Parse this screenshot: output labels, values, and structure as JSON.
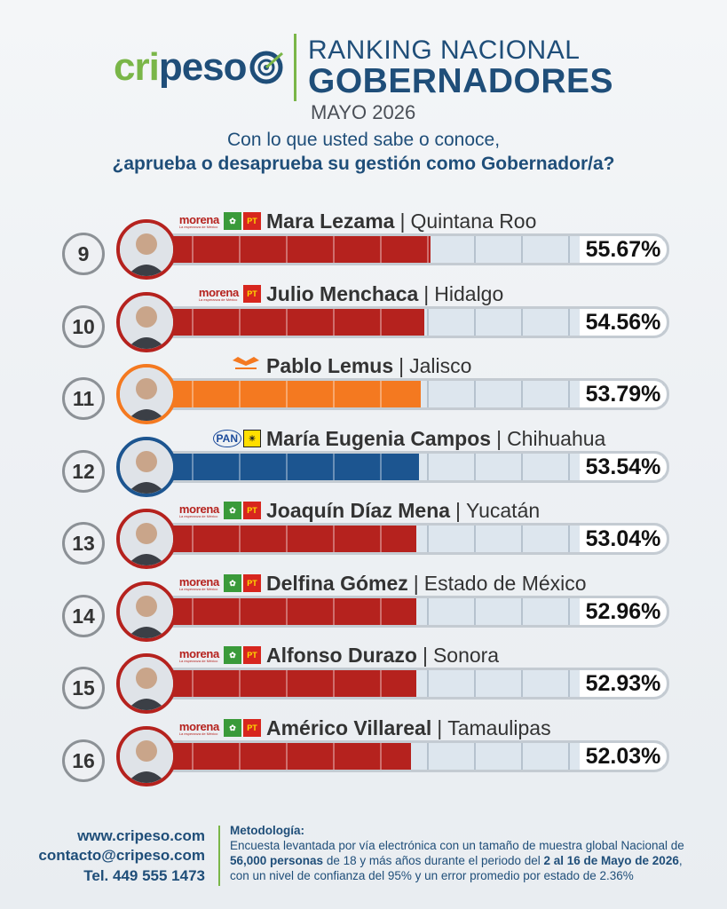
{
  "brand": {
    "logo_part1": "cri",
    "logo_part2": "peso"
  },
  "header": {
    "title_line1": "RANKING NACIONAL",
    "title_line2": "GOBERNADORES",
    "period": "MAYO 2026"
  },
  "question": {
    "line1": "Con lo que usted sabe o conoce,",
    "line2": "¿aprueba o desaprueba su gestión como Gobernador/a?"
  },
  "party_labels": {
    "morena": "morena",
    "morena_sub": "La esperanza de México",
    "verde": "VERDE",
    "pt": "PT",
    "mc": "MOVIMIENTO CIUDADANO",
    "pan": "PAN",
    "prd": "PRD"
  },
  "chart_data": {
    "type": "bar",
    "orientation": "horizontal",
    "value_unit": "%",
    "xlim": [
      0,
      100
    ],
    "rows": [
      {
        "rank": "9",
        "name": "Mara Lezama",
        "state": "Quintana Roo",
        "value": 55.67,
        "label": "55.67%",
        "color": "#b5221e",
        "parties": [
          "morena",
          "verde",
          "pt"
        ]
      },
      {
        "rank": "10",
        "name": "Julio Menchaca",
        "state": "Hidalgo",
        "value": 54.56,
        "label": "54.56%",
        "color": "#b5221e",
        "parties": [
          "morena",
          "pt"
        ]
      },
      {
        "rank": "11",
        "name": "Pablo Lemus",
        "state": "Jalisco",
        "value": 53.79,
        "label": "53.79%",
        "color": "#f47920",
        "parties": [
          "mc"
        ]
      },
      {
        "rank": "12",
        "name": "María Eugenia Campos",
        "state": "Chihuahua",
        "value": 53.54,
        "label": "53.54%",
        "color": "#1c5590",
        "parties": [
          "pan",
          "prd"
        ]
      },
      {
        "rank": "13",
        "name": "Joaquín Díaz Mena",
        "state": "Yucatán",
        "value": 53.04,
        "label": "53.04%",
        "color": "#b5221e",
        "parties": [
          "morena",
          "verde",
          "pt"
        ]
      },
      {
        "rank": "14",
        "name": "Delfina Gómez",
        "state": "Estado de México",
        "value": 52.96,
        "label": "52.96%",
        "color": "#b5221e",
        "parties": [
          "morena",
          "verde",
          "pt"
        ]
      },
      {
        "rank": "15",
        "name": "Alfonso Durazo",
        "state": "Sonora",
        "value": 52.93,
        "label": "52.93%",
        "color": "#b5221e",
        "parties": [
          "morena",
          "verde",
          "pt"
        ]
      },
      {
        "rank": "16",
        "name": "Américo Villareal",
        "state": "Tamaulipas",
        "value": 52.03,
        "label": "52.03%",
        "color": "#b5221e",
        "parties": [
          "morena",
          "verde",
          "pt"
        ]
      }
    ]
  },
  "footer": {
    "website": "www.cripeso.com",
    "email": "contacto@cripeso.com",
    "phone": "Tel. 449 555 1473",
    "methodology_title": "Metodología:",
    "methodology_a": "Encuesta levantada por vía electrónica con un tamaño de muestra global Nacional de",
    "methodology_b_bold": "56,000 personas",
    "methodology_c": " de 18 y más años durante el periodo del ",
    "methodology_d_bold": "2 al 16 de Mayo de 2026",
    "methodology_e": ",",
    "methodology_f": "con un nivel de confianza del 95% y un error promedio por estado de 2.36%"
  }
}
